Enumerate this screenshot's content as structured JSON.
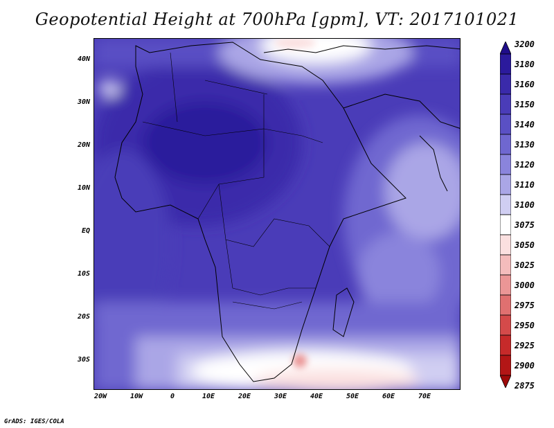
{
  "title": "Geopotential Height at 700hPa [gpm], VT: 2017101021",
  "credit": "GrADS: IGES/COLA",
  "lat_labels": [
    "40N",
    "30N",
    "20N",
    "10N",
    "EQ",
    "10S",
    "20S",
    "30S"
  ],
  "lon_labels": [
    "20W",
    "10W",
    "0",
    "10E",
    "20E",
    "30E",
    "40E",
    "50E",
    "60E",
    "70E"
  ],
  "colorbar": {
    "levels": [
      "3200",
      "3180",
      "3160",
      "3150",
      "3140",
      "3130",
      "3120",
      "3110",
      "3100",
      "3075",
      "3050",
      "3025",
      "3000",
      "2975",
      "2950",
      "2925",
      "2900",
      "2875"
    ],
    "colors": [
      "#1f0d8a",
      "#2b1a9c",
      "#3a2aaa",
      "#4a3cb8",
      "#5a50c4",
      "#6f67d0",
      "#8a84dc",
      "#aaa6e6",
      "#d0cef2",
      "#ffffff",
      "#fbe0e0",
      "#f4bcbc",
      "#eb9696",
      "#e07070",
      "#d44a4a",
      "#c62a2a",
      "#b31616",
      "#9e0a0a"
    ]
  }
}
